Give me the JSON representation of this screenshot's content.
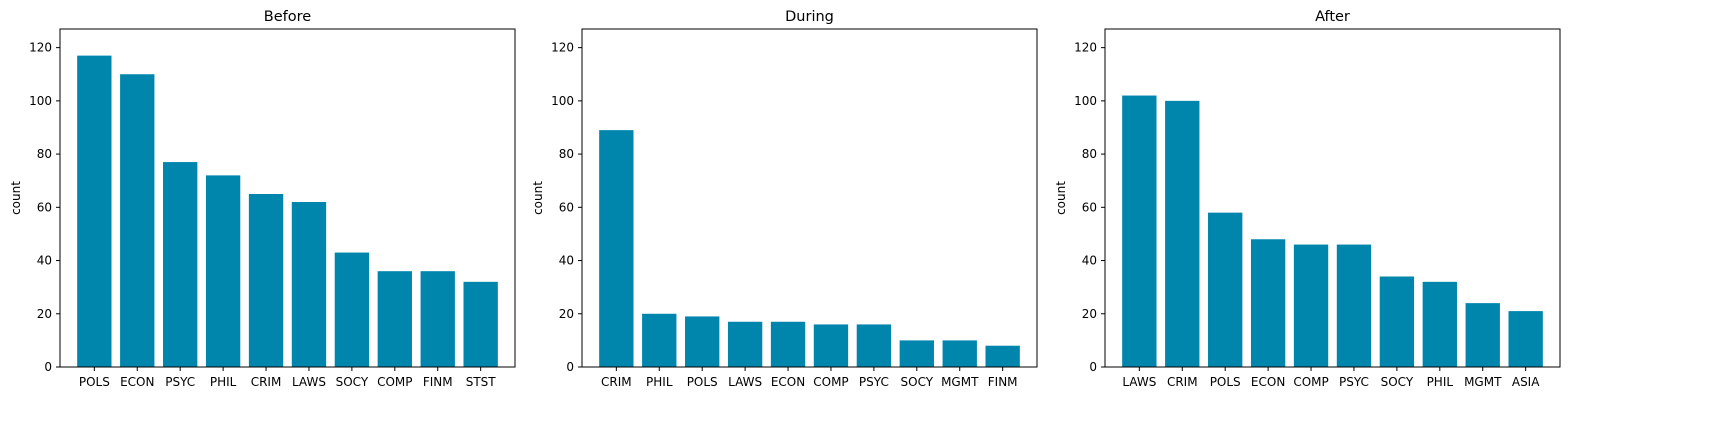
{
  "chart_data": [
    {
      "type": "bar",
      "title": "Before",
      "xlabel": "",
      "ylabel": "count",
      "ylim": [
        0,
        127
      ],
      "yticks": [
        0,
        20,
        40,
        60,
        80,
        100,
        120
      ],
      "categories": [
        "POLS",
        "ECON",
        "PSYC",
        "PHIL",
        "CRIM",
        "LAWS",
        "SOCY",
        "COMP",
        "FINM",
        "STST"
      ],
      "values": [
        117,
        110,
        77,
        72,
        65,
        62,
        43,
        36,
        36,
        32
      ],
      "color": "#0086AD",
      "grid": false
    },
    {
      "type": "bar",
      "title": "During",
      "xlabel": "",
      "ylabel": "count",
      "ylim": [
        0,
        127
      ],
      "yticks": [
        0,
        20,
        40,
        60,
        80,
        100,
        120
      ],
      "categories": [
        "CRIM",
        "PHIL",
        "POLS",
        "LAWS",
        "ECON",
        "COMP",
        "PSYC",
        "SOCY",
        "MGMT",
        "FINM"
      ],
      "values": [
        89,
        20,
        19,
        17,
        17,
        16,
        16,
        10,
        10,
        8
      ],
      "color": "#0086AD",
      "grid": false
    },
    {
      "type": "bar",
      "title": "After",
      "xlabel": "",
      "ylabel": "count",
      "ylim": [
        0,
        127
      ],
      "yticks": [
        0,
        20,
        40,
        60,
        80,
        100,
        120
      ],
      "categories": [
        "LAWS",
        "CRIM",
        "POLS",
        "ECON",
        "COMP",
        "PSYC",
        "SOCY",
        "PHIL",
        "MGMT",
        "ASIA"
      ],
      "values": [
        102,
        100,
        58,
        48,
        46,
        46,
        34,
        32,
        24,
        21
      ],
      "color": "#0086AD",
      "grid": false
    }
  ]
}
